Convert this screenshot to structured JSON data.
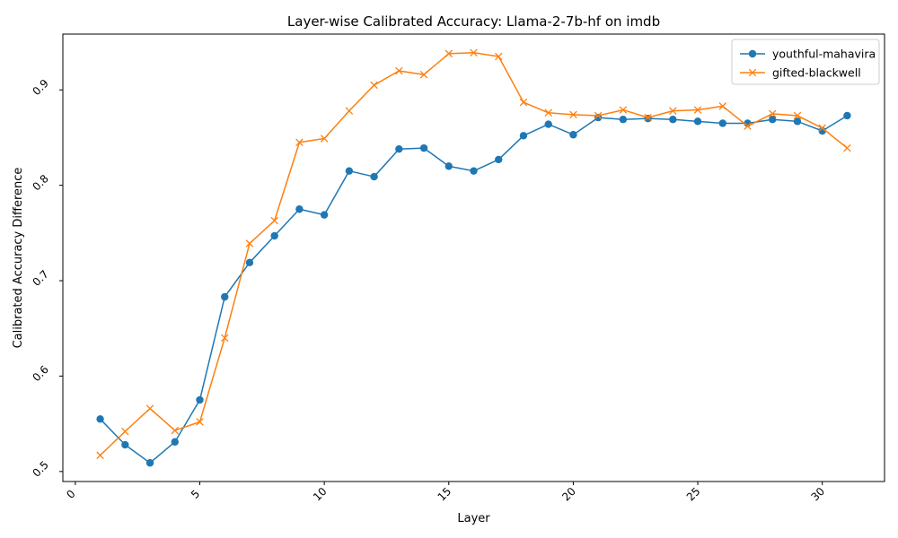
{
  "chart_data": {
    "type": "line",
    "title": "Layer-wise Calibrated Accuracy: Llama-2-7b-hf on imdb",
    "xlabel": "Layer",
    "ylabel": "Calibrated Accuracy Difference",
    "xlim": [
      -0.5,
      32.5
    ],
    "ylim": [
      0.4895,
      0.9585
    ],
    "xticks": [
      0,
      5,
      10,
      15,
      20,
      25,
      30
    ],
    "yticks": [
      0.5,
      0.6,
      0.7,
      0.8,
      0.9
    ],
    "ytick_labels": [
      "0.5",
      "0.6",
      "0.7",
      "0.8",
      "0.9"
    ],
    "tick_label_rotation": 45,
    "grid": false,
    "legend": "top-right",
    "x": [
      1,
      2,
      3,
      4,
      5,
      6,
      7,
      8,
      9,
      10,
      11,
      12,
      13,
      14,
      15,
      16,
      17,
      18,
      19,
      20,
      21,
      22,
      23,
      24,
      25,
      26,
      27,
      28,
      29,
      30,
      31
    ],
    "series": [
      {
        "name": "youthful-mahavira",
        "color": "#1f77b4",
        "marker": "circle",
        "values": [
          0.555,
          0.528,
          0.509,
          0.531,
          0.575,
          0.683,
          0.719,
          0.747,
          0.775,
          0.769,
          0.815,
          0.809,
          0.838,
          0.839,
          0.82,
          0.815,
          0.827,
          0.852,
          0.864,
          0.853,
          0.871,
          0.869,
          0.87,
          0.869,
          0.867,
          0.865,
          0.865,
          0.869,
          0.867,
          0.857,
          0.873
        ]
      },
      {
        "name": "gifted-blackwell",
        "color": "#ff7f0e",
        "marker": "x",
        "values": [
          0.517,
          0.542,
          0.566,
          0.543,
          0.552,
          0.64,
          0.739,
          0.763,
          0.845,
          0.849,
          0.878,
          0.905,
          0.92,
          0.916,
          0.938,
          0.939,
          0.935,
          0.887,
          0.876,
          0.874,
          0.873,
          0.879,
          0.871,
          0.878,
          0.879,
          0.883,
          0.862,
          0.875,
          0.873,
          0.86,
          0.839
        ]
      }
    ]
  }
}
